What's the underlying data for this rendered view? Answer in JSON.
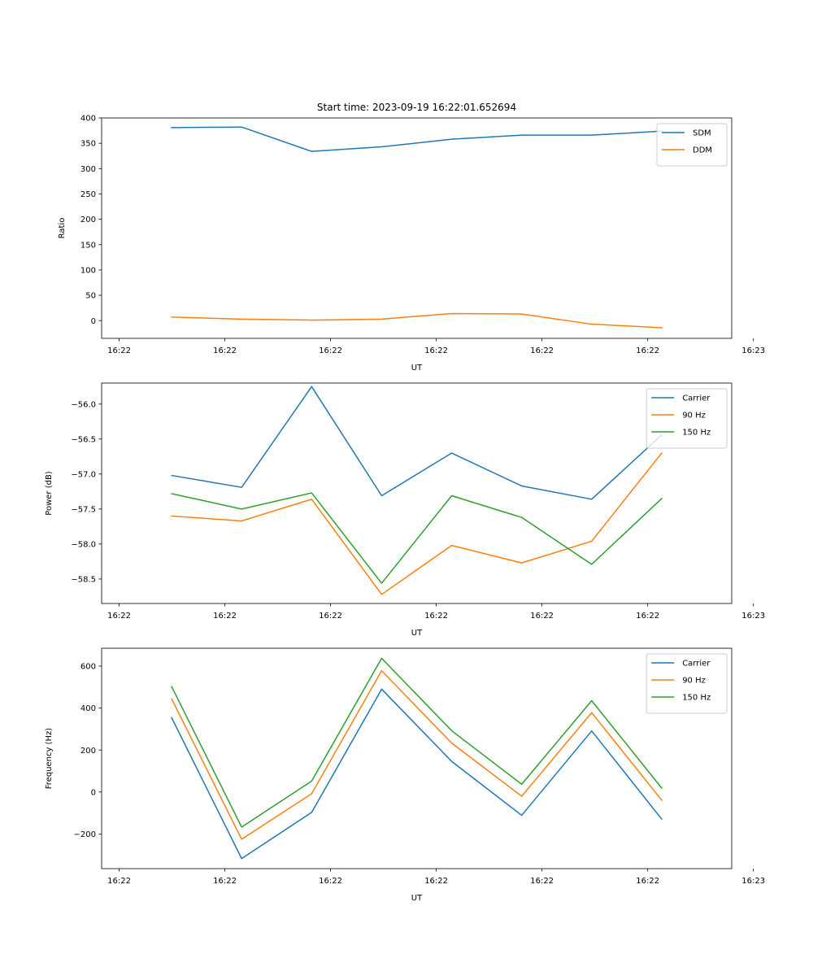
{
  "figure_title": "Start time: 2023-09-19 16:22:01.652694",
  "colors": {
    "c0": "#1f77b4",
    "c1": "#ff7f0e",
    "c2": "#2ca02c"
  },
  "chart_data": [
    {
      "type": "line",
      "title": "Start time: 2023-09-19 16:22:01.652694",
      "xlabel": "UT",
      "ylabel": "Ratio",
      "x": [
        1,
        2,
        3,
        4,
        5,
        6,
        7,
        8
      ],
      "xlim": [
        0,
        9
      ],
      "x_ticks": [
        0.25,
        1.76,
        3.27,
        4.78,
        6.29,
        7.8,
        9.31
      ],
      "x_tick_labels": [
        "16:22",
        "16:22",
        "16:22",
        "16:22",
        "16:22",
        "16:22",
        "16:22"
      ],
      "x_tick_last_label": "16:23",
      "ylim": [
        -35,
        400
      ],
      "y_ticks": [
        0,
        50,
        100,
        150,
        200,
        250,
        300,
        350,
        400
      ],
      "y_tick_labels": [
        "0",
        "50",
        "100",
        "150",
        "200",
        "250",
        "300",
        "350",
        "400"
      ],
      "legend_position": "top-right",
      "series": [
        {
          "name": "SDM",
          "color": "#1f77b4",
          "values": [
            381,
            382,
            334,
            343,
            358,
            366,
            366,
            374
          ]
        },
        {
          "name": "DDM",
          "color": "#ff7f0e",
          "values": [
            7,
            3,
            1,
            3,
            14,
            13,
            -7,
            -14
          ]
        }
      ]
    },
    {
      "type": "line",
      "title": "",
      "xlabel": "UT",
      "ylabel": "Power (dB)",
      "x": [
        1,
        2,
        3,
        4,
        5,
        6,
        7,
        8
      ],
      "xlim": [
        0,
        9
      ],
      "x_ticks": [
        0.25,
        1.76,
        3.27,
        4.78,
        6.29,
        7.8,
        9.31
      ],
      "x_tick_labels": [
        "16:22",
        "16:22",
        "16:22",
        "16:22",
        "16:22",
        "16:22",
        "16:22"
      ],
      "x_tick_last_label": "16:23",
      "ylim": [
        -58.85,
        -55.7
      ],
      "y_ticks": [
        -58.5,
        -58.0,
        -57.5,
        -57.0,
        -56.5,
        -56.0
      ],
      "y_tick_labels": [
        "−58.5",
        "−58.0",
        "−57.5",
        "−57.0",
        "−56.5",
        "−56.0"
      ],
      "legend_position": "top-right",
      "series": [
        {
          "name": "Carrier",
          "color": "#1f77b4",
          "values": [
            -57.02,
            -57.19,
            -55.75,
            -57.31,
            -56.7,
            -57.17,
            -57.36,
            -56.44
          ]
        },
        {
          "name": "90 Hz",
          "color": "#ff7f0e",
          "values": [
            -57.6,
            -57.67,
            -57.36,
            -58.72,
            -58.02,
            -58.27,
            -57.96,
            -56.7
          ]
        },
        {
          "name": "150 Hz",
          "color": "#2ca02c",
          "values": [
            -57.28,
            -57.5,
            -57.27,
            -58.56,
            -57.31,
            -57.62,
            -58.29,
            -57.35
          ]
        }
      ]
    },
    {
      "type": "line",
      "title": "",
      "xlabel": "UT",
      "ylabel": "Frequency (Hz)",
      "x": [
        1,
        2,
        3,
        4,
        5,
        6,
        7,
        8
      ],
      "xlim": [
        0,
        9
      ],
      "x_ticks": [
        0.25,
        1.76,
        3.27,
        4.78,
        6.29,
        7.8,
        9.31
      ],
      "x_tick_labels": [
        "16:22",
        "16:22",
        "16:22",
        "16:22",
        "16:22",
        "16:22",
        "16:22"
      ],
      "x_tick_last_label": "16:23",
      "ylim": [
        -365,
        685
      ],
      "y_ticks": [
        -200,
        0,
        200,
        400,
        600
      ],
      "y_tick_labels": [
        "−200",
        "0",
        "200",
        "400",
        "600"
      ],
      "legend_position": "top-right",
      "series": [
        {
          "name": "Carrier",
          "color": "#1f77b4",
          "values": [
            354,
            -317,
            -97,
            490,
            146,
            -111,
            291,
            -129
          ]
        },
        {
          "name": "90 Hz",
          "color": "#ff7f0e",
          "values": [
            444,
            -225,
            -8,
            578,
            233,
            -20,
            378,
            -39
          ]
        },
        {
          "name": "150 Hz",
          "color": "#2ca02c",
          "values": [
            502,
            -167,
            52,
            637,
            292,
            37,
            435,
            19
          ]
        }
      ]
    }
  ]
}
